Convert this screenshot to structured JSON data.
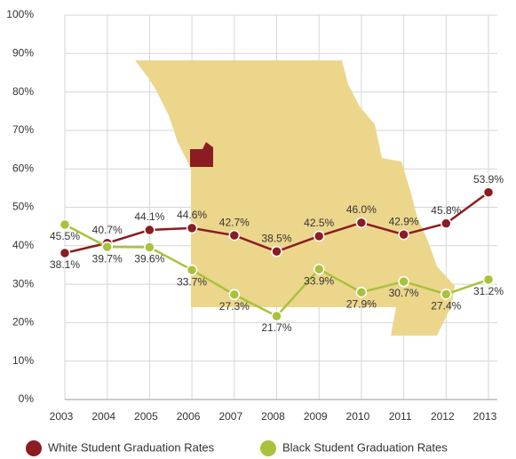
{
  "chart_data": {
    "type": "line",
    "categories": [
      "2003",
      "2004",
      "2005",
      "2006",
      "2007",
      "2008",
      "2009",
      "2010",
      "2011",
      "2012",
      "2013"
    ],
    "series": [
      {
        "name": "White Student Graduation Rates",
        "color": "#8b1c21",
        "values": [
          38.1,
          40.7,
          44.1,
          44.6,
          42.7,
          38.5,
          42.5,
          46.0,
          42.9,
          45.8,
          53.9
        ],
        "value_labels": [
          "38.1%",
          "40.7%",
          "44.1%",
          "44.6%",
          "42.7%",
          "38.5%",
          "42.5%",
          "46.0%",
          "42.9%",
          "45.8%",
          "53.9%"
        ]
      },
      {
        "name": "Black Student Graduation Rates",
        "color": "#a9c23c",
        "values": [
          45.5,
          39.7,
          39.6,
          33.7,
          27.3,
          21.7,
          33.9,
          27.9,
          30.7,
          27.4,
          31.2
        ],
        "value_labels": [
          "45.5%",
          "39.7%",
          "39.6%",
          "33.7%",
          "27.3%",
          "21.7%",
          "33.9%",
          "27.9%",
          "30.7%",
          "27.4%",
          "31.2%"
        ]
      }
    ],
    "ylim": [
      0,
      100
    ],
    "yticks": [
      {
        "value": 0,
        "label": "0%"
      },
      {
        "value": 10,
        "label": "10%"
      },
      {
        "value": 20,
        "label": "20%"
      },
      {
        "value": 30,
        "label": "30%"
      },
      {
        "value": 40,
        "label": "40%"
      },
      {
        "value": 50,
        "label": "50%"
      },
      {
        "value": 60,
        "label": "60%"
      },
      {
        "value": 70,
        "label": "70%"
      },
      {
        "value": 80,
        "label": "80%"
      },
      {
        "value": 90,
        "label": "90%"
      },
      {
        "value": 100,
        "label": "100%"
      }
    ],
    "grid": true,
    "legend": "bottom"
  }
}
